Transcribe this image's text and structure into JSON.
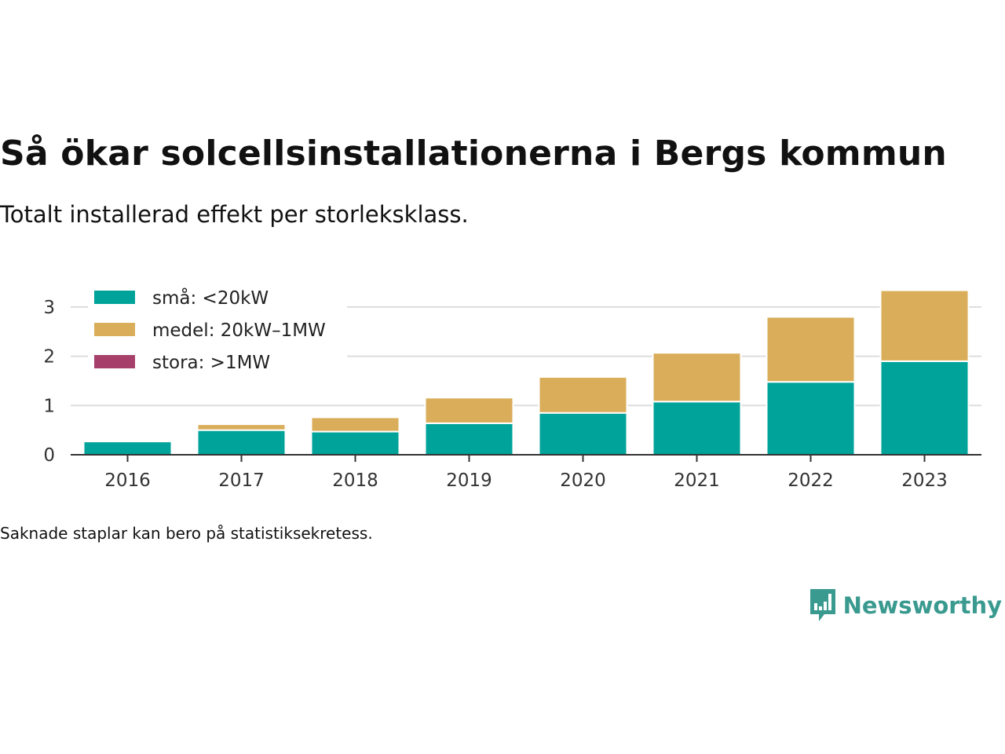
{
  "title": "Så ökar solcellsinstallationerna i Bergs kommun",
  "subtitle": "Totalt installerad effekt per storleksklass.",
  "note": "Saknade staplar kan bero på statistiksekretess.",
  "brand": {
    "name": "Newsworthy",
    "icon": "newsworthy-logo-icon",
    "color": "#3a9a8f"
  },
  "chart_data": {
    "type": "bar",
    "stacked": true,
    "categories": [
      "2016",
      "2017",
      "2018",
      "2019",
      "2020",
      "2021",
      "2022",
      "2023"
    ],
    "series": [
      {
        "name": "små: <20kW",
        "color": "#00a39a",
        "values": [
          0.27,
          0.5,
          0.47,
          0.64,
          0.85,
          1.08,
          1.48,
          1.9
        ]
      },
      {
        "name": "medel: 20kW–1MW",
        "color": "#d9ad59",
        "values": [
          0,
          0.12,
          0.29,
          0.52,
          0.73,
          0.99,
          1.32,
          1.44
        ]
      },
      {
        "name": "stora: >1MW",
        "color": "#a6406a",
        "values": [
          0,
          0,
          0,
          0,
          0,
          0,
          0,
          0
        ]
      }
    ],
    "yticks": [
      0,
      1,
      2,
      3
    ],
    "ylim": [
      0,
      3.4
    ],
    "xlabel": "",
    "ylabel": "",
    "grid": true,
    "legend_position": "top-left"
  }
}
